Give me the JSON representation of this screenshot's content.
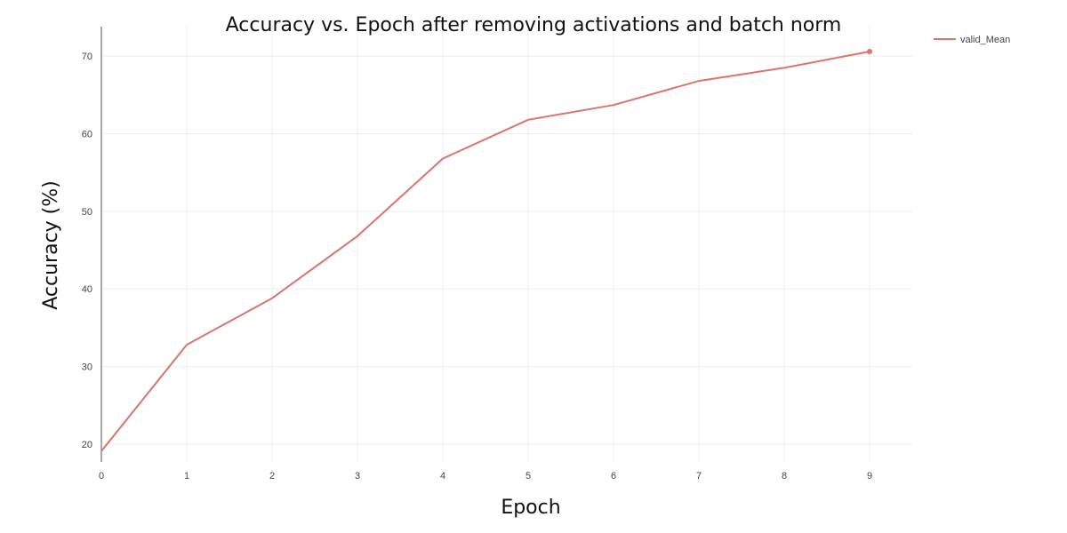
{
  "chart_data": {
    "type": "line",
    "title": "Accuracy vs. Epoch after removing activations and batch norm",
    "xlabel": "Epoch",
    "ylabel": "Accuracy (%)",
    "x": [
      0,
      1,
      2,
      3,
      4,
      5,
      6,
      7,
      8,
      9
    ],
    "x_ticks": [
      "0",
      "1",
      "2",
      "3",
      "4",
      "5",
      "6",
      "7",
      "8",
      "9"
    ],
    "y_ticks": [
      "20",
      "30",
      "40",
      "50",
      "60",
      "70"
    ],
    "xlim": [
      0,
      9.5
    ],
    "ylim": [
      17.7,
      73.8
    ],
    "grid": true,
    "legend_position": "top-right",
    "series": [
      {
        "name": "valid_Mean",
        "color": "#d9756f",
        "values": [
          19.1,
          32.8,
          38.8,
          46.8,
          56.8,
          61.8,
          63.7,
          66.8,
          68.5,
          70.6
        ]
      }
    ]
  }
}
